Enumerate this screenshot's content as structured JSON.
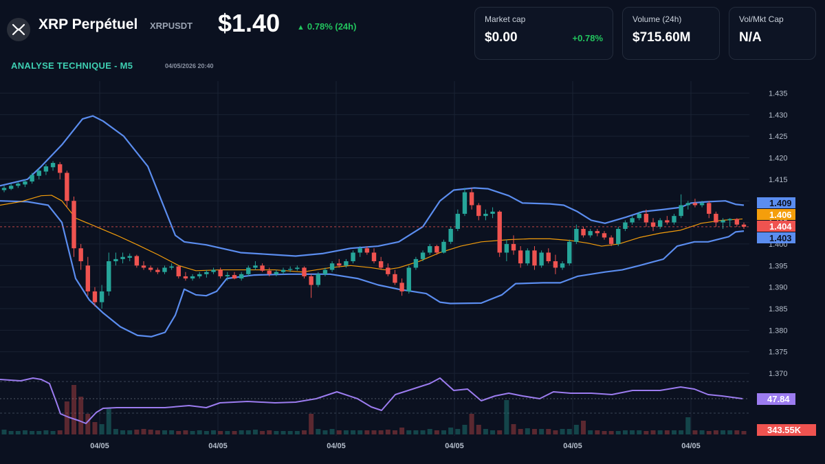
{
  "header": {
    "title": "XRP Perpétuel",
    "symbol": "XRPUSDT",
    "price": "$1.40",
    "change": "0.78% (24h)",
    "logo_icon": "xrp-logo-icon"
  },
  "cards": [
    {
      "label": "Market cap",
      "value": "$0.00",
      "change": "+0.78%"
    },
    {
      "label": "Volume (24h)",
      "value": "$715.60M"
    },
    {
      "label": "Vol/Mkt Cap",
      "value": "N/A"
    }
  ],
  "section": {
    "title": "ANALYSE TECHNIQUE - M5",
    "date": "04/05/2026 20:40"
  },
  "colors": {
    "up": "#26a69a",
    "down": "#ef5350",
    "bb": "#5b8def",
    "ma": "#f59e0b",
    "rsi": "#9c7cf0",
    "positive": "#22c55e",
    "accent": "#3ecfb2"
  },
  "chart_data": {
    "type": "candlestick",
    "x_tick_labels": [
      "04/05",
      "04/05",
      "04/05",
      "04/05",
      "04/05",
      "04/05"
    ],
    "y_tick_labels": [
      "1.435",
      "1.430",
      "1.425",
      "1.420",
      "1.415",
      "1.410",
      "1.405",
      "1.400",
      "1.395",
      "1.390",
      "1.385",
      "1.380",
      "1.375",
      "1.370"
    ],
    "ylim": [
      1.3685,
      1.4365
    ],
    "price_tags": [
      {
        "value": "1.409",
        "color": "#5b8def"
      },
      {
        "value": "1.406",
        "color": "#f59e0b"
      },
      {
        "value": "1.404",
        "color": "#ef5350"
      },
      {
        "value": "1.403",
        "color": "#5b8def"
      }
    ],
    "rsi_tag": "47.84",
    "volume_tag": "343.55K",
    "ohlc": [
      [
        1.4125,
        1.4135,
        1.412,
        1.413
      ],
      [
        1.4128,
        1.414,
        1.4125,
        1.4135
      ],
      [
        1.4135,
        1.4145,
        1.413,
        1.414
      ],
      [
        1.4138,
        1.415,
        1.4132,
        1.4145
      ],
      [
        1.4145,
        1.4165,
        1.414,
        1.416
      ],
      [
        1.4158,
        1.4175,
        1.415,
        1.417
      ],
      [
        1.4168,
        1.4185,
        1.416,
        1.418
      ],
      [
        1.4178,
        1.4192,
        1.417,
        1.4188
      ],
      [
        1.4185,
        1.419,
        1.415,
        1.4165
      ],
      [
        1.4165,
        1.417,
        1.4085,
        1.41
      ],
      [
        1.41,
        1.411,
        1.397,
        1.399
      ],
      [
        1.399,
        1.4,
        1.394,
        1.396
      ],
      [
        1.395,
        1.397,
        1.388,
        1.389
      ],
      [
        1.389,
        1.39,
        1.3855,
        1.3865
      ],
      [
        1.3865,
        1.3905,
        1.385,
        1.389
      ],
      [
        1.389,
        1.398,
        1.388,
        1.396
      ],
      [
        1.396,
        1.398,
        1.395,
        1.3965
      ],
      [
        1.3965,
        1.398,
        1.3955,
        1.397
      ],
      [
        1.3968,
        1.3978,
        1.396,
        1.3972
      ],
      [
        1.3972,
        1.3975,
        1.3945,
        1.395
      ],
      [
        1.395,
        1.396,
        1.394,
        1.3945
      ],
      [
        1.3945,
        1.395,
        1.3935,
        1.394
      ],
      [
        1.394,
        1.3945,
        1.393,
        1.3935
      ],
      [
        1.3935,
        1.395,
        1.393,
        1.3945
      ],
      [
        1.3945,
        1.3955,
        1.394,
        1.3948
      ],
      [
        1.3948,
        1.395,
        1.392,
        1.3925
      ],
      [
        1.3925,
        1.3935,
        1.3915,
        1.392
      ],
      [
        1.392,
        1.393,
        1.3915,
        1.3925
      ],
      [
        1.3925,
        1.3935,
        1.392,
        1.393
      ],
      [
        1.393,
        1.394,
        1.3922,
        1.3935
      ],
      [
        1.3935,
        1.3945,
        1.393,
        1.394
      ],
      [
        1.394,
        1.3945,
        1.392,
        1.3925
      ],
      [
        1.3925,
        1.3935,
        1.3915,
        1.3928
      ],
      [
        1.3928,
        1.3935,
        1.3918,
        1.392
      ],
      [
        1.392,
        1.3935,
        1.3915,
        1.393
      ],
      [
        1.393,
        1.395,
        1.3925,
        1.3945
      ],
      [
        1.3945,
        1.396,
        1.394,
        1.395
      ],
      [
        1.395,
        1.3955,
        1.3935,
        1.3938
      ],
      [
        1.3938,
        1.3945,
        1.3925,
        1.393
      ],
      [
        1.393,
        1.394,
        1.3925,
        1.3935
      ],
      [
        1.3935,
        1.3945,
        1.393,
        1.394
      ],
      [
        1.394,
        1.3948,
        1.3935,
        1.3942
      ],
      [
        1.3942,
        1.395,
        1.3938,
        1.3945
      ],
      [
        1.3945,
        1.3948,
        1.392,
        1.3925
      ],
      [
        1.3925,
        1.393,
        1.3875,
        1.3905
      ],
      [
        1.3905,
        1.3935,
        1.39,
        1.393
      ],
      [
        1.393,
        1.3945,
        1.3925,
        1.394
      ],
      [
        1.394,
        1.396,
        1.3935,
        1.3955
      ],
      [
        1.3955,
        1.3965,
        1.3945,
        1.395
      ],
      [
        1.395,
        1.3965,
        1.3945,
        1.396
      ],
      [
        1.396,
        1.3985,
        1.3955,
        1.398
      ],
      [
        1.398,
        1.3995,
        1.397,
        1.399
      ],
      [
        1.399,
        1.3995,
        1.3975,
        1.398
      ],
      [
        1.398,
        1.399,
        1.3955,
        1.396
      ],
      [
        1.396,
        1.397,
        1.394,
        1.3945
      ],
      [
        1.3945,
        1.3955,
        1.3925,
        1.393
      ],
      [
        1.393,
        1.394,
        1.3905,
        1.391
      ],
      [
        1.391,
        1.392,
        1.388,
        1.389
      ],
      [
        1.389,
        1.395,
        1.3885,
        1.3945
      ],
      [
        1.3945,
        1.397,
        1.394,
        1.3965
      ],
      [
        1.3965,
        1.3985,
        1.396,
        1.398
      ],
      [
        1.398,
        1.4,
        1.3975,
        1.3995
      ],
      [
        1.3995,
        1.3998,
        1.3975,
        1.398
      ],
      [
        1.398,
        1.401,
        1.3978,
        1.4005
      ],
      [
        1.4005,
        1.404,
        1.4,
        1.4035
      ],
      [
        1.4035,
        1.408,
        1.403,
        1.407
      ],
      [
        1.407,
        1.413,
        1.4065,
        1.412
      ],
      [
        1.412,
        1.413,
        1.408,
        1.409
      ],
      [
        1.409,
        1.4095,
        1.4055,
        1.4065
      ],
      [
        1.4065,
        1.408,
        1.4055,
        1.407
      ],
      [
        1.407,
        1.4085,
        1.406,
        1.4075
      ],
      [
        1.4075,
        1.4078,
        1.397,
        1.398
      ],
      [
        1.398,
        1.401,
        1.396,
        1.4
      ],
      [
        1.4,
        1.402,
        1.3975,
        1.3985
      ],
      [
        1.3985,
        1.3995,
        1.3945,
        1.3955
      ],
      [
        1.3955,
        1.399,
        1.395,
        1.3985
      ],
      [
        1.3985,
        1.3995,
        1.394,
        1.395
      ],
      [
        1.395,
        1.3985,
        1.3945,
        1.398
      ],
      [
        1.398,
        1.399,
        1.3955,
        1.396
      ],
      [
        1.396,
        1.3975,
        1.393,
        1.3945
      ],
      [
        1.3945,
        1.396,
        1.394,
        1.3955
      ],
      [
        1.3955,
        1.401,
        1.395,
        1.4005
      ],
      [
        1.4005,
        1.4045,
        1.4,
        1.4035
      ],
      [
        1.4035,
        1.404,
        1.4015,
        1.402
      ],
      [
        1.402,
        1.4035,
        1.4015,
        1.403
      ],
      [
        1.403,
        1.4035,
        1.4018,
        1.4025
      ],
      [
        1.4025,
        1.403,
        1.401,
        1.4015
      ],
      [
        1.4015,
        1.402,
        1.3995,
        1.4
      ],
      [
        1.4,
        1.404,
        1.3995,
        1.4035
      ],
      [
        1.4035,
        1.4055,
        1.403,
        1.405
      ],
      [
        1.405,
        1.4065,
        1.4045,
        1.406
      ],
      [
        1.406,
        1.4075,
        1.4055,
        1.407
      ],
      [
        1.407,
        1.408,
        1.404,
        1.405
      ],
      [
        1.405,
        1.406,
        1.403,
        1.404
      ],
      [
        1.404,
        1.406,
        1.4035,
        1.4055
      ],
      [
        1.4055,
        1.4065,
        1.4045,
        1.405
      ],
      [
        1.405,
        1.407,
        1.4045,
        1.4065
      ],
      [
        1.4065,
        1.4115,
        1.406,
        1.409
      ],
      [
        1.409,
        1.41,
        1.408,
        1.4095
      ],
      [
        1.4095,
        1.4105,
        1.4085,
        1.409
      ],
      [
        1.409,
        1.41,
        1.4085,
        1.4095
      ],
      [
        1.4095,
        1.41,
        1.406,
        1.407
      ],
      [
        1.407,
        1.4075,
        1.404,
        1.405
      ],
      [
        1.405,
        1.406,
        1.4035,
        1.4055
      ],
      [
        1.4055,
        1.406,
        1.404,
        1.4058
      ],
      [
        1.4058,
        1.406,
        1.404,
        1.4045
      ],
      [
        1.4045,
        1.405,
        1.4035,
        1.404
      ]
    ],
    "bollinger_upper": [
      [
        0,
        1.4135
      ],
      [
        40,
        1.415
      ],
      [
        60,
        1.418
      ],
      [
        90,
        1.423
      ],
      [
        120,
        1.429
      ],
      [
        135,
        1.4297
      ],
      [
        150,
        1.4285
      ],
      [
        180,
        1.425
      ],
      [
        215,
        1.418
      ],
      [
        235,
        1.41
      ],
      [
        255,
        1.402
      ],
      [
        268,
        1.4005
      ],
      [
        300,
        1.3998
      ],
      [
        350,
        1.398
      ],
      [
        400,
        1.3975
      ],
      [
        430,
        1.3972
      ],
      [
        470,
        1.3978
      ],
      [
        510,
        1.399
      ],
      [
        550,
        1.3995
      ],
      [
        580,
        1.4005
      ],
      [
        615,
        1.404
      ],
      [
        640,
        1.41
      ],
      [
        660,
        1.4125
      ],
      [
        690,
        1.413
      ],
      [
        710,
        1.4128
      ],
      [
        740,
        1.4112
      ],
      [
        760,
        1.4095
      ],
      [
        800,
        1.4093
      ],
      [
        820,
        1.409
      ],
      [
        840,
        1.4075
      ],
      [
        860,
        1.4055
      ],
      [
        880,
        1.4048
      ],
      [
        910,
        1.4062
      ],
      [
        935,
        1.4075
      ],
      [
        965,
        1.408
      ],
      [
        990,
        1.4085
      ],
      [
        1005,
        1.4095
      ],
      [
        1030,
        1.4098
      ],
      [
        1055,
        1.41
      ],
      [
        1070,
        1.4092
      ],
      [
        1082,
        1.409
      ]
    ],
    "bollinger_lower": [
      [
        0,
        1.41
      ],
      [
        40,
        1.4098
      ],
      [
        70,
        1.409
      ],
      [
        90,
        1.405
      ],
      [
        110,
        1.392
      ],
      [
        130,
        1.387
      ],
      [
        150,
        1.384
      ],
      [
        175,
        1.3808
      ],
      [
        200,
        1.3788
      ],
      [
        220,
        1.3785
      ],
      [
        240,
        1.3795
      ],
      [
        255,
        1.3835
      ],
      [
        268,
        1.3895
      ],
      [
        285,
        1.3882
      ],
      [
        300,
        1.388
      ],
      [
        315,
        1.389
      ],
      [
        330,
        1.392
      ],
      [
        370,
        1.3928
      ],
      [
        420,
        1.393
      ],
      [
        480,
        1.393
      ],
      [
        520,
        1.392
      ],
      [
        550,
        1.3905
      ],
      [
        580,
        1.3895
      ],
      [
        620,
        1.3885
      ],
      [
        640,
        1.3865
      ],
      [
        655,
        1.3862
      ],
      [
        700,
        1.3863
      ],
      [
        730,
        1.3882
      ],
      [
        750,
        1.3908
      ],
      [
        790,
        1.391
      ],
      [
        815,
        1.391
      ],
      [
        840,
        1.3925
      ],
      [
        880,
        1.3935
      ],
      [
        905,
        1.394
      ],
      [
        930,
        1.395
      ],
      [
        965,
        1.3965
      ],
      [
        985,
        1.3995
      ],
      [
        1010,
        1.4005
      ],
      [
        1030,
        1.4005
      ],
      [
        1060,
        1.4017
      ],
      [
        1070,
        1.4028
      ],
      [
        1082,
        1.403
      ]
    ],
    "moving_average": [
      [
        0,
        1.409
      ],
      [
        30,
        1.4098
      ],
      [
        60,
        1.4112
      ],
      [
        75,
        1.4113
      ],
      [
        90,
        1.41
      ],
      [
        110,
        1.406
      ],
      [
        140,
        1.404
      ],
      [
        170,
        1.402
      ],
      [
        200,
        1.3998
      ],
      [
        230,
        1.3975
      ],
      [
        260,
        1.395
      ],
      [
        285,
        1.3938
      ],
      [
        320,
        1.394
      ],
      [
        360,
        1.394
      ],
      [
        400,
        1.394
      ],
      [
        440,
        1.3935
      ],
      [
        480,
        1.3945
      ],
      [
        510,
        1.395
      ],
      [
        540,
        1.3945
      ],
      [
        560,
        1.394
      ],
      [
        580,
        1.3945
      ],
      [
        610,
        1.396
      ],
      [
        640,
        1.398
      ],
      [
        670,
        1.3995
      ],
      [
        700,
        1.4005
      ],
      [
        740,
        1.401
      ],
      [
        770,
        1.4012
      ],
      [
        800,
        1.4012
      ],
      [
        830,
        1.4008
      ],
      [
        855,
        1.4002
      ],
      [
        875,
        1.3995
      ],
      [
        900,
        1.4
      ],
      [
        930,
        1.4015
      ],
      [
        960,
        1.4025
      ],
      [
        990,
        1.4032
      ],
      [
        1020,
        1.4048
      ],
      [
        1050,
        1.4055
      ],
      [
        1080,
        1.4058
      ]
    ],
    "rsi": [
      [
        0,
        552
      ],
      [
        30,
        554
      ],
      [
        48,
        550
      ],
      [
        60,
        552
      ],
      [
        72,
        558
      ],
      [
        82,
        585
      ],
      [
        88,
        602
      ],
      [
        100,
        607
      ],
      [
        115,
        612
      ],
      [
        125,
        616
      ],
      [
        140,
        600
      ],
      [
        150,
        594
      ],
      [
        170,
        593
      ],
      [
        200,
        593
      ],
      [
        240,
        593
      ],
      [
        275,
        590
      ],
      [
        300,
        593
      ],
      [
        320,
        586
      ],
      [
        360,
        584
      ],
      [
        400,
        586
      ],
      [
        430,
        585
      ],
      [
        460,
        580
      ],
      [
        490,
        570
      ],
      [
        520,
        580
      ],
      [
        540,
        592
      ],
      [
        555,
        597
      ],
      [
        575,
        574
      ],
      [
        600,
        566
      ],
      [
        625,
        558
      ],
      [
        640,
        550
      ],
      [
        660,
        568
      ],
      [
        680,
        566
      ],
      [
        700,
        583
      ],
      [
        720,
        576
      ],
      [
        740,
        572
      ],
      [
        760,
        576
      ],
      [
        785,
        580
      ],
      [
        805,
        570
      ],
      [
        830,
        572
      ],
      [
        860,
        572
      ],
      [
        890,
        574
      ],
      [
        920,
        568
      ],
      [
        960,
        568
      ],
      [
        990,
        563
      ],
      [
        1010,
        566
      ],
      [
        1030,
        574
      ],
      [
        1050,
        576
      ],
      [
        1080,
        580
      ]
    ],
    "volume": [
      7,
      5,
      5,
      6,
      5,
      5,
      6,
      5,
      6,
      48,
      72,
      55,
      30,
      18,
      15,
      38,
      8,
      6,
      6,
      7,
      8,
      7,
      6,
      6,
      6,
      5,
      6,
      5,
      6,
      5,
      6,
      5,
      5,
      5,
      6,
      6,
      7,
      5,
      6,
      5,
      5,
      5,
      5,
      6,
      30,
      8,
      6,
      8,
      6,
      6,
      6,
      6,
      6,
      6,
      6,
      7,
      6,
      10,
      6,
      6,
      6,
      8,
      6,
      6,
      10,
      8,
      14,
      30,
      14,
      8,
      6,
      6,
      50,
      15,
      8,
      9,
      8,
      8,
      8,
      6,
      8,
      8,
      14,
      20,
      6,
      6,
      5,
      5,
      5,
      6,
      6,
      6,
      5,
      6,
      6,
      6,
      6,
      6,
      25,
      6,
      6,
      5,
      6,
      6,
      6,
      6,
      5,
      4,
      3
    ]
  }
}
